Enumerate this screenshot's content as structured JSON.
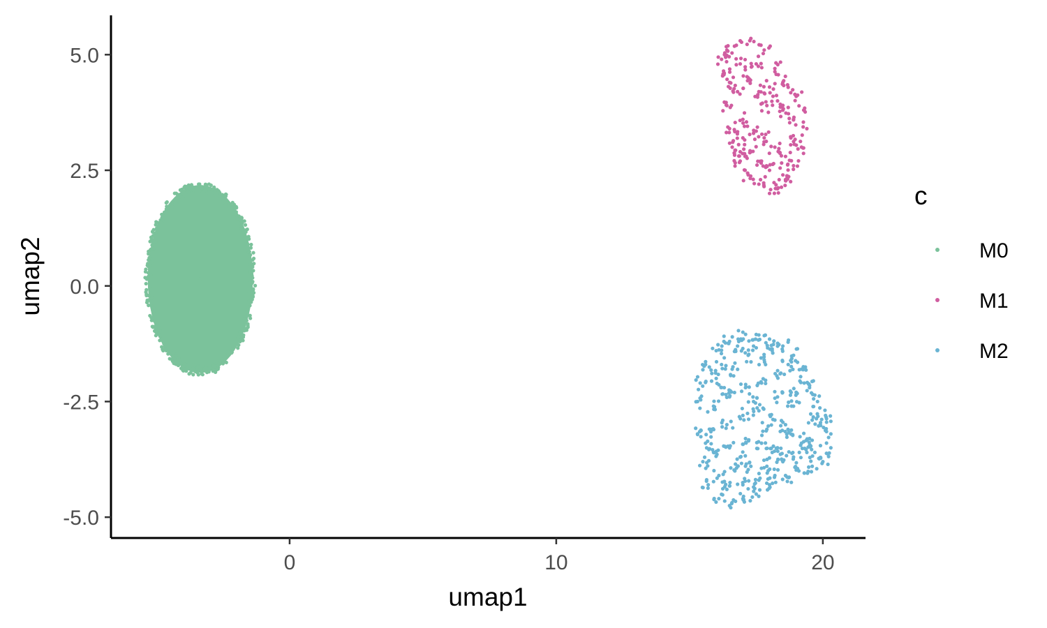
{
  "chart_data": {
    "type": "scatter",
    "title": "",
    "xlabel": "umap1",
    "ylabel": "umap2",
    "xlim": [
      -6.7,
      21.6
    ],
    "ylim": [
      -5.45,
      5.85
    ],
    "xticks": [
      0,
      10,
      20
    ],
    "xtick_labels": [
      "0",
      "10",
      "20"
    ],
    "yticks": [
      5.0,
      2.5,
      0.0,
      -2.5,
      -5.0
    ],
    "ytick_labels": [
      "5.0",
      "2.5",
      "0.0",
      "-2.5",
      "-5.0"
    ],
    "grid": false,
    "legend": {
      "title": "c",
      "placement": "right",
      "entries": [
        "M0",
        "M1",
        "M2"
      ]
    },
    "series": [
      {
        "name": "M0",
        "color": "#7bc29b",
        "x_range": [
          -5.4,
          -1.3
        ],
        "y_range": [
          -1.95,
          2.2
        ],
        "center": [
          -3.35,
          0.15
        ],
        "points": [
          [
            -3.35,
            0.15
          ],
          [
            -5.3,
            0.2
          ],
          [
            -1.5,
            0.1
          ],
          [
            -3.35,
            2.15
          ],
          [
            -3.3,
            -1.9
          ],
          [
            -4.8,
            1.3
          ],
          [
            -1.8,
            1.3
          ],
          [
            -4.9,
            -0.9
          ],
          [
            -1.9,
            -1.1
          ]
        ]
      },
      {
        "name": "M1",
        "color": "#d05da0",
        "x_range": [
          16.0,
          19.4
        ],
        "y_range": [
          2.0,
          5.35
        ],
        "points": [
          [
            16.2,
            4.9
          ],
          [
            16.4,
            5.1
          ],
          [
            16.9,
            5.3
          ],
          [
            17.3,
            5.35
          ],
          [
            17.8,
            5.1
          ],
          [
            18.2,
            4.7
          ],
          [
            18.5,
            4.4
          ],
          [
            19.0,
            4.1
          ],
          [
            19.3,
            3.8
          ],
          [
            19.4,
            3.4
          ],
          [
            19.2,
            3.0
          ],
          [
            18.9,
            2.6
          ],
          [
            18.6,
            2.3
          ],
          [
            18.3,
            2.1
          ],
          [
            18.0,
            2.0
          ],
          [
            17.6,
            2.2
          ],
          [
            17.2,
            2.4
          ],
          [
            16.9,
            2.7
          ],
          [
            16.6,
            3.0
          ],
          [
            16.5,
            3.4
          ],
          [
            16.4,
            3.9
          ],
          [
            16.5,
            4.4
          ],
          [
            16.3,
            4.6
          ],
          [
            16.9,
            4.8
          ],
          [
            17.5,
            4.8
          ],
          [
            18.0,
            4.3
          ],
          [
            17.9,
            3.9
          ],
          [
            18.5,
            3.8
          ],
          [
            18.9,
            3.6
          ],
          [
            17.0,
            3.6
          ],
          [
            17.4,
            3.3
          ],
          [
            17.8,
            3.2
          ],
          [
            18.2,
            3.0
          ],
          [
            18.6,
            2.8
          ],
          [
            17.0,
            3.2
          ],
          [
            17.3,
            2.9
          ],
          [
            17.7,
            2.7
          ],
          [
            18.0,
            2.5
          ],
          [
            18.5,
            2.4
          ],
          [
            16.8,
            4.2
          ],
          [
            17.2,
            4.5
          ],
          [
            17.6,
            4.2
          ],
          [
            18.3,
            4.0
          ],
          [
            16.9,
            2.9
          ],
          [
            18.8,
            3.2
          ]
        ]
      },
      {
        "name": "M2",
        "color": "#6ab4d3",
        "x_range": [
          15.2,
          20.4
        ],
        "y_range": [
          -4.8,
          -0.95
        ],
        "points": [
          [
            15.3,
            -2.5
          ],
          [
            15.3,
            -3.2
          ],
          [
            15.5,
            -3.8
          ],
          [
            15.7,
            -4.3
          ],
          [
            16.1,
            -4.6
          ],
          [
            16.5,
            -4.75
          ],
          [
            17.0,
            -4.6
          ],
          [
            17.5,
            -4.5
          ],
          [
            18.0,
            -4.3
          ],
          [
            18.6,
            -4.1
          ],
          [
            19.1,
            -4.0
          ],
          [
            19.6,
            -3.9
          ],
          [
            20.0,
            -3.8
          ],
          [
            20.3,
            -3.5
          ],
          [
            20.3,
            -3.2
          ],
          [
            20.1,
            -2.8
          ],
          [
            19.8,
            -2.5
          ],
          [
            19.5,
            -2.2
          ],
          [
            19.2,
            -1.8
          ],
          [
            18.9,
            -1.5
          ],
          [
            18.5,
            -1.3
          ],
          [
            18.0,
            -1.15
          ],
          [
            17.5,
            -1.05
          ],
          [
            17.0,
            -1.0
          ],
          [
            16.5,
            -1.2
          ],
          [
            16.0,
            -1.4
          ],
          [
            15.6,
            -1.7
          ],
          [
            15.4,
            -2.1
          ],
          [
            16.0,
            -2.0
          ],
          [
            16.6,
            -1.8
          ],
          [
            17.2,
            -1.5
          ],
          [
            17.8,
            -1.6
          ],
          [
            18.4,
            -1.9
          ],
          [
            19.0,
            -2.3
          ],
          [
            19.6,
            -2.9
          ],
          [
            15.9,
            -2.6
          ],
          [
            16.5,
            -2.4
          ],
          [
            17.1,
            -2.2
          ],
          [
            17.7,
            -2.1
          ],
          [
            18.3,
            -2.4
          ],
          [
            18.9,
            -2.6
          ],
          [
            19.5,
            -3.3
          ],
          [
            15.8,
            -3.1
          ],
          [
            16.4,
            -3.0
          ],
          [
            17.0,
            -2.8
          ],
          [
            17.6,
            -2.7
          ],
          [
            18.2,
            -2.9
          ],
          [
            18.8,
            -3.2
          ],
          [
            19.4,
            -3.6
          ],
          [
            15.9,
            -3.6
          ],
          [
            16.5,
            -3.5
          ],
          [
            17.1,
            -3.3
          ],
          [
            17.7,
            -3.4
          ],
          [
            18.3,
            -3.5
          ],
          [
            18.9,
            -3.7
          ],
          [
            16.1,
            -4.1
          ],
          [
            16.7,
            -4.0
          ],
          [
            17.3,
            -3.9
          ],
          [
            17.9,
            -3.9
          ],
          [
            18.5,
            -3.8
          ],
          [
            16.4,
            -4.4
          ],
          [
            17.0,
            -4.3
          ],
          [
            17.6,
            -4.2
          ],
          [
            18.2,
            -4.1
          ],
          [
            16.2,
            -1.7
          ],
          [
            16.8,
            -1.3
          ],
          [
            17.4,
            -1.3
          ],
          [
            18.1,
            -1.4
          ],
          [
            18.7,
            -1.7
          ],
          [
            19.3,
            -2.1
          ],
          [
            19.9,
            -3.0
          ],
          [
            16.3,
            -2.2
          ],
          [
            17.4,
            -2.5
          ],
          [
            18.6,
            -3.0
          ],
          [
            15.6,
            -3.4
          ],
          [
            17.9,
            -3.1
          ],
          [
            19.2,
            -3.4
          ],
          [
            16.9,
            -3.7
          ],
          [
            18.1,
            -3.6
          ],
          [
            19.7,
            -3.6
          ]
        ]
      }
    ]
  }
}
